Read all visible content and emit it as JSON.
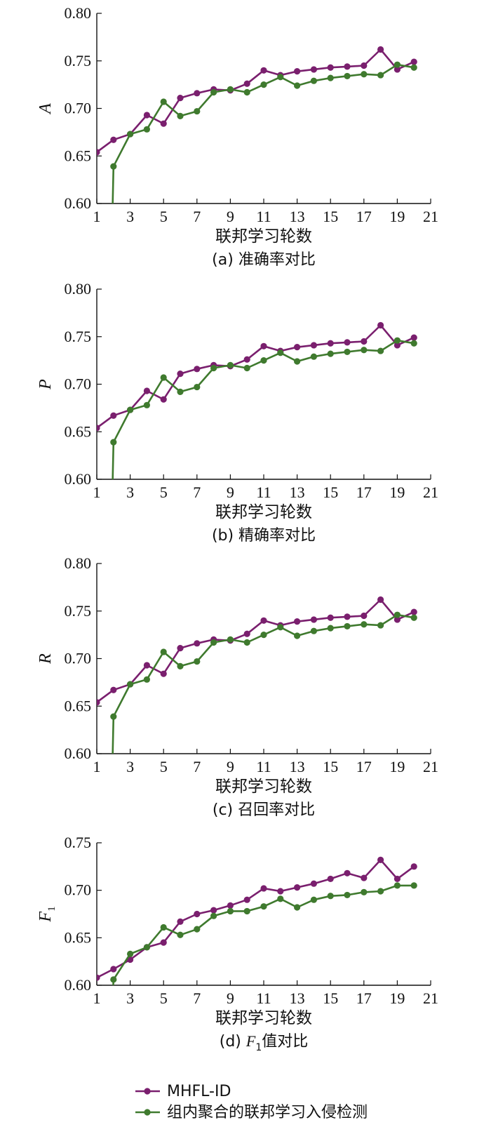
{
  "colors": {
    "mhfl": "#7a1f6e",
    "intra": "#3f7a2e",
    "axis": "#111111"
  },
  "legend": {
    "mhfl_label": "MHFL-ID",
    "intra_label": "组内聚合的联邦学习入侵检测"
  },
  "chart_data": [
    {
      "type": "line",
      "panel": "a",
      "ylabel": "A",
      "xlabel": "联邦学习轮数",
      "caption": "(a) 准确率对比",
      "xlim": [
        1,
        21
      ],
      "xticks": [
        1,
        3,
        5,
        7,
        9,
        11,
        13,
        15,
        17,
        19,
        21
      ],
      "ylim": [
        0.6,
        0.8
      ],
      "yticks": [
        "0.60",
        "0.65",
        "0.70",
        "0.75",
        "0.80"
      ],
      "series": [
        {
          "name": "MHFL-ID",
          "x": [
            1,
            2,
            3,
            4,
            5,
            6,
            7,
            8,
            9,
            10,
            11,
            12,
            13,
            14,
            15,
            16,
            17,
            18,
            19,
            20
          ],
          "values": [
            0.654,
            0.667,
            0.673,
            0.693,
            0.684,
            0.711,
            0.716,
            0.72,
            0.719,
            0.726,
            0.74,
            0.735,
            0.739,
            0.741,
            0.743,
            0.744,
            0.745,
            0.762,
            0.741,
            0.749
          ]
        },
        {
          "name": "组内聚合的联邦学习入侵检测",
          "x": [
            2,
            3,
            4,
            5,
            6,
            7,
            8,
            9,
            10,
            11,
            12,
            13,
            14,
            15,
            16,
            17,
            18,
            19,
            20
          ],
          "values": [
            0.639,
            0.673,
            0.678,
            0.707,
            0.692,
            0.697,
            0.717,
            0.72,
            0.717,
            0.725,
            0.733,
            0.724,
            0.729,
            0.732,
            0.734,
            0.736,
            0.735,
            0.746,
            0.743
          ]
        }
      ]
    },
    {
      "type": "line",
      "panel": "b",
      "ylabel": "P",
      "xlabel": "联邦学习轮数",
      "caption": "(b) 精确率对比",
      "xlim": [
        1,
        21
      ],
      "xticks": [
        1,
        3,
        5,
        7,
        9,
        11,
        13,
        15,
        17,
        19,
        21
      ],
      "ylim": [
        0.6,
        0.8
      ],
      "yticks": [
        "0.60",
        "0.65",
        "0.70",
        "0.75",
        "0.80"
      ],
      "series": [
        {
          "name": "MHFL-ID",
          "x": [
            1,
            2,
            3,
            4,
            5,
            6,
            7,
            8,
            9,
            10,
            11,
            12,
            13,
            14,
            15,
            16,
            17,
            18,
            19,
            20
          ],
          "values": [
            0.654,
            0.667,
            0.673,
            0.693,
            0.684,
            0.711,
            0.716,
            0.72,
            0.719,
            0.726,
            0.74,
            0.735,
            0.739,
            0.741,
            0.743,
            0.744,
            0.745,
            0.762,
            0.741,
            0.749
          ]
        },
        {
          "name": "组内聚合的联邦学习入侵检测",
          "x": [
            2,
            3,
            4,
            5,
            6,
            7,
            8,
            9,
            10,
            11,
            12,
            13,
            14,
            15,
            16,
            17,
            18,
            19,
            20
          ],
          "values": [
            0.639,
            0.673,
            0.678,
            0.707,
            0.692,
            0.697,
            0.717,
            0.72,
            0.717,
            0.725,
            0.733,
            0.724,
            0.729,
            0.732,
            0.734,
            0.736,
            0.735,
            0.746,
            0.743
          ]
        }
      ]
    },
    {
      "type": "line",
      "panel": "c",
      "ylabel": "R",
      "xlabel": "联邦学习轮数",
      "caption": "(c) 召回率对比",
      "xlim": [
        1,
        21
      ],
      "xticks": [
        1,
        3,
        5,
        7,
        9,
        11,
        13,
        15,
        17,
        19,
        21
      ],
      "ylim": [
        0.6,
        0.8
      ],
      "yticks": [
        "0.60",
        "0.65",
        "0.70",
        "0.75",
        "0.80"
      ],
      "series": [
        {
          "name": "MHFL-ID",
          "x": [
            1,
            2,
            3,
            4,
            5,
            6,
            7,
            8,
            9,
            10,
            11,
            12,
            13,
            14,
            15,
            16,
            17,
            18,
            19,
            20
          ],
          "values": [
            0.654,
            0.667,
            0.673,
            0.693,
            0.684,
            0.711,
            0.716,
            0.72,
            0.719,
            0.726,
            0.74,
            0.735,
            0.739,
            0.741,
            0.743,
            0.744,
            0.745,
            0.762,
            0.741,
            0.749
          ]
        },
        {
          "name": "组内聚合的联邦学习入侵检测",
          "x": [
            2,
            3,
            4,
            5,
            6,
            7,
            8,
            9,
            10,
            11,
            12,
            13,
            14,
            15,
            16,
            17,
            18,
            19,
            20
          ],
          "values": [
            0.639,
            0.673,
            0.678,
            0.707,
            0.692,
            0.697,
            0.717,
            0.72,
            0.717,
            0.725,
            0.733,
            0.724,
            0.729,
            0.732,
            0.734,
            0.736,
            0.735,
            0.746,
            0.743
          ]
        }
      ]
    },
    {
      "type": "line",
      "panel": "d",
      "ylabel": "F",
      "ylabel_sub": "1",
      "xlabel": "联邦学习轮数",
      "caption_prefix": "(d) ",
      "caption_var": "F",
      "caption_sub": "1",
      "caption_suffix": "值对比",
      "xlim": [
        1,
        21
      ],
      "xticks": [
        1,
        3,
        5,
        7,
        9,
        11,
        13,
        15,
        17,
        19,
        21
      ],
      "ylim": [
        0.6,
        0.75
      ],
      "yticks": [
        "0.60",
        "0.65",
        "0.70",
        "0.75"
      ],
      "series": [
        {
          "name": "MHFL-ID",
          "x": [
            1,
            2,
            3,
            4,
            5,
            6,
            7,
            8,
            9,
            10,
            11,
            12,
            13,
            14,
            15,
            16,
            17,
            18,
            19,
            20
          ],
          "values": [
            0.608,
            0.617,
            0.627,
            0.64,
            0.645,
            0.667,
            0.675,
            0.679,
            0.684,
            0.69,
            0.702,
            0.699,
            0.703,
            0.707,
            0.712,
            0.718,
            0.713,
            0.732,
            0.712,
            0.725
          ]
        },
        {
          "name": "组内聚合的联邦学习入侵检测",
          "x": [
            2,
            3,
            4,
            5,
            6,
            7,
            8,
            9,
            10,
            11,
            12,
            13,
            14,
            15,
            16,
            17,
            18,
            19,
            20
          ],
          "values": [
            0.606,
            0.633,
            0.64,
            0.661,
            0.653,
            0.659,
            0.673,
            0.678,
            0.678,
            0.683,
            0.691,
            0.682,
            0.69,
            0.694,
            0.695,
            0.698,
            0.699,
            0.705,
            0.705
          ]
        }
      ]
    }
  ]
}
